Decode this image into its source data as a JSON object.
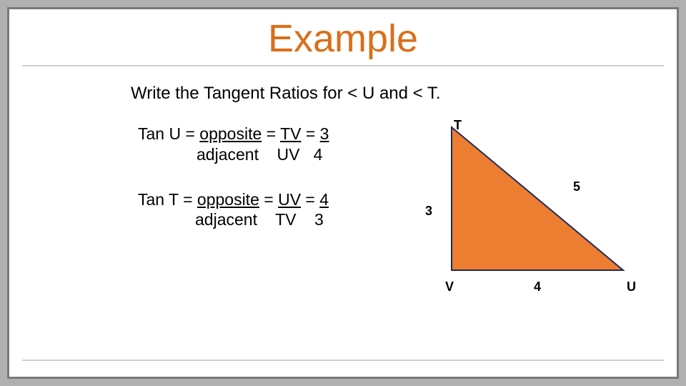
{
  "title": {
    "text": "Example",
    "color": "#d96f1a",
    "fontsize": 54
  },
  "prompt": "Write the Tangent Ratios for < U and < T.",
  "eq1": {
    "line1_pre": "Tan U = ",
    "line1_u1": "opposite",
    "line1_mid1": "  = ",
    "line1_u2": "TV",
    "line1_mid2": " = ",
    "line1_u3": "3",
    "line2": "adjacent    UV   4"
  },
  "eq2": {
    "line1_pre": "Tan T = ",
    "line1_u1": "opposite",
    "line1_mid1": " =  ",
    "line1_u2": "UV",
    "line1_mid2": " = ",
    "line1_u3": "4",
    "line2": "adjacent    TV    3"
  },
  "triangle": {
    "type": "right-triangle",
    "vertices": {
      "T": "T",
      "V": "V",
      "U": "U"
    },
    "sides": {
      "TV": 3,
      "VU": 4,
      "TU": 5
    },
    "points": {
      "T": [
        5,
        5
      ],
      "V": [
        5,
        205
      ],
      "U": [
        245,
        205
      ]
    },
    "fill_color": "#ed7d31",
    "stroke_color": "#1f2a5a",
    "stroke_width": 2,
    "label_color": "#000000",
    "label_fontsize": 18
  },
  "colors": {
    "page_bg": "#b0b0b0",
    "slide_bg": "#ffffff",
    "border": "#7a7a7a",
    "rule": "#cfcfcf",
    "body_text": "#000000"
  }
}
